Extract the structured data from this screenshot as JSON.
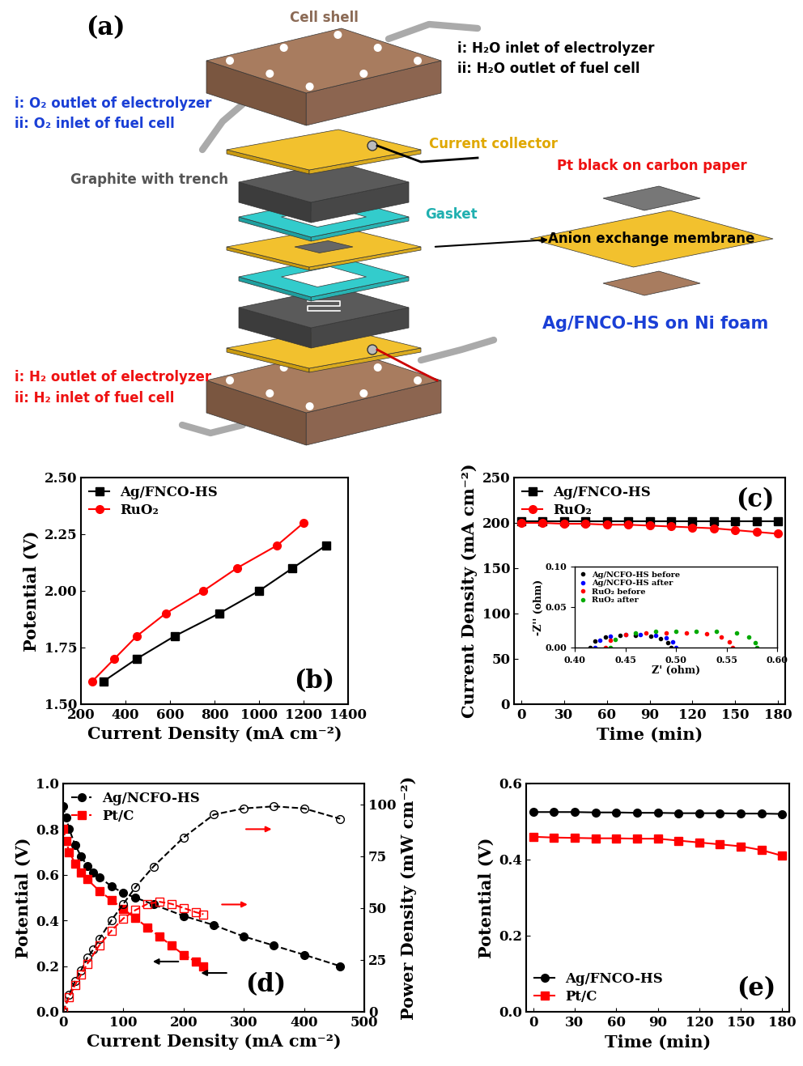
{
  "diagram": {
    "panel_label": "(a)",
    "labels": {
      "cell_shell": "Cell shell",
      "water_port": [
        "i: H₂O inlet of electrolyzer",
        "ii: H₂O outlet of fuel cell"
      ],
      "oxygen_port": [
        "i: O₂ outlet of electrolyzer",
        "ii: O₂ inlet of fuel cell"
      ],
      "current_collector": "Current collector",
      "graphite": "Graphite with trench",
      "gasket": "Gasket",
      "cathode": "Pt black on carbon paper",
      "membrane": "Anion exchange membrane",
      "anode": "Ag/FNCO-HS on Ni foam",
      "hydrogen_port": [
        "i: H₂ outlet of electrolyzer",
        "ii: H₂ inlet of fuel cell"
      ]
    }
  },
  "chart_data": [
    {
      "type": "line",
      "title": "(b)",
      "x_label": "Current Density (mA cm⁻²)",
      "y_label": "Potential (V)",
      "xlim": [
        200,
        1400
      ],
      "xticks": [
        200,
        400,
        600,
        800,
        1000,
        1200,
        1400
      ],
      "ylim": [
        1.5,
        2.5
      ],
      "yticks": [
        {
          "value": 1.5,
          "label": "1.50"
        },
        {
          "value": 1.75,
          "label": "1.75"
        },
        {
          "value": 2.0,
          "label": "2.00"
        },
        {
          "value": 2.25,
          "label": "2.25"
        },
        {
          "value": 2.5,
          "label": "2.50"
        }
      ],
      "legend": "upper left",
      "series": [
        {
          "name": "Ag/FNCO-HS",
          "color": "#000000",
          "marker": "square",
          "line_style": "solid",
          "x": [
            300,
            450,
            620,
            820,
            1000,
            1150,
            1300
          ],
          "values": [
            1.6,
            1.7,
            1.8,
            1.9,
            2.0,
            2.1,
            2.2
          ]
        },
        {
          "name": "RuO₂",
          "color": "#ff0000",
          "marker": "circle",
          "line_style": "solid",
          "x": [
            250,
            350,
            450,
            580,
            750,
            900,
            1080,
            1200
          ],
          "values": [
            1.6,
            1.7,
            1.8,
            1.9,
            2.0,
            2.1,
            2.2,
            2.3
          ]
        }
      ]
    },
    {
      "type": "line",
      "title": "(c)",
      "x_label": "Time (min)",
      "y_label": "Current Density (mA cm⁻²)",
      "xlim": [
        -5,
        185
      ],
      "xticks": [
        0,
        30,
        60,
        90,
        120,
        150,
        180
      ],
      "ylim": [
        0,
        250
      ],
      "yticks": [
        0,
        50,
        100,
        150,
        200,
        250
      ],
      "legend": "upper left",
      "x": [
        0,
        15,
        30,
        45,
        60,
        75,
        90,
        105,
        120,
        135,
        150,
        165,
        180
      ],
      "series": [
        {
          "name": "Ag/FNCO-HS",
          "color": "#000000",
          "marker": "square",
          "line_style": "solid",
          "values": [
            202,
            202,
            202,
            202,
            202,
            202,
            202,
            202,
            202,
            202,
            202,
            202,
            202
          ]
        },
        {
          "name": "RuO₂",
          "color": "#ff0000",
          "marker": "circle",
          "line_style": "solid",
          "values": [
            200,
            200,
            199,
            199,
            198,
            198,
            197,
            196,
            195,
            194,
            192,
            190,
            188
          ]
        }
      ]
    },
    {
      "type": "scatter",
      "x_label": "Z' (ohm)",
      "y_label": "-Z'' (ohm)",
      "xlim": [
        0.4,
        0.6
      ],
      "xticks": [
        {
          "value": 0.4,
          "label": "0.40"
        },
        {
          "value": 0.45,
          "label": "0.45"
        },
        {
          "value": 0.5,
          "label": "0.50"
        },
        {
          "value": 0.55,
          "label": "0.55"
        },
        {
          "value": 0.6,
          "label": "0.60"
        }
      ],
      "ylim": [
        0,
        0.1
      ],
      "yticks": [
        {
          "value": 0,
          "label": "0.00"
        },
        {
          "value": 0.05,
          "label": "0.05"
        },
        {
          "value": 0.1,
          "label": "0.10"
        }
      ],
      "legend": "upper left",
      "series": [
        {
          "name": "Ag/NCFO-HS before",
          "color": "#000000",
          "marker": "circle",
          "x": [
            0.415,
            0.42,
            0.43,
            0.445,
            0.46,
            0.475,
            0.485,
            0.492,
            0.495
          ],
          "values": [
            0,
            0.008,
            0.013,
            0.015,
            0.015,
            0.014,
            0.011,
            0.006,
            0
          ]
        },
        {
          "name": "Ag/NCFO-HS after",
          "color": "#0000ff",
          "marker": "circle",
          "x": [
            0.42,
            0.425,
            0.435,
            0.45,
            0.465,
            0.48,
            0.49,
            0.497,
            0.5
          ],
          "values": [
            0,
            0.009,
            0.014,
            0.016,
            0.016,
            0.015,
            0.012,
            0.007,
            0
          ]
        },
        {
          "name": "RuO₂ before",
          "color": "#ff0000",
          "marker": "circle",
          "x": [
            0.43,
            0.435,
            0.45,
            0.47,
            0.49,
            0.51,
            0.53,
            0.545,
            0.553,
            0.556
          ],
          "values": [
            0,
            0.009,
            0.016,
            0.018,
            0.018,
            0.018,
            0.017,
            0.013,
            0.007,
            0
          ]
        },
        {
          "name": "RuO₂ after",
          "color": "#00aa00",
          "marker": "circle",
          "x": [
            0.435,
            0.44,
            0.46,
            0.48,
            0.5,
            0.52,
            0.54,
            0.56,
            0.572,
            0.578,
            0.58
          ],
          "values": [
            0,
            0.01,
            0.018,
            0.02,
            0.02,
            0.02,
            0.02,
            0.018,
            0.013,
            0.006,
            0
          ]
        }
      ]
    },
    {
      "type": "line",
      "title": "(d)",
      "x_label": "Current Density (mA cm⁻²)",
      "y_label": "Potential (V)",
      "y2_label": "Power Density (mW cm⁻²)",
      "xlim": [
        0,
        500
      ],
      "xticks": [
        0,
        100,
        200,
        300,
        400,
        500
      ],
      "ylim": [
        0,
        1.0
      ],
      "yticks": [
        0.0,
        0.2,
        0.4,
        0.6,
        0.8,
        1.0
      ],
      "y2lim": [
        0,
        110
      ],
      "y2ticks": [
        0,
        25,
        50,
        75,
        100
      ],
      "legend": "upper left",
      "series": [
        {
          "name": "Ag/NCFO-HS",
          "color": "#000000",
          "marker": "circle",
          "line_style": "dashed",
          "x": [
            0,
            5,
            10,
            20,
            30,
            40,
            50,
            60,
            80,
            100,
            120,
            150,
            200,
            250,
            300,
            350,
            400,
            460
          ],
          "values": [
            0.9,
            0.85,
            0.8,
            0.73,
            0.68,
            0.64,
            0.61,
            0.59,
            0.55,
            0.52,
            0.5,
            0.47,
            0.42,
            0.38,
            0.33,
            0.29,
            0.25,
            0.2
          ]
        },
        {
          "name": "Pt/C",
          "color": "#ff0000",
          "marker": "square",
          "line_style": "dashed",
          "x": [
            0,
            5,
            10,
            20,
            30,
            40,
            60,
            80,
            100,
            120,
            140,
            160,
            180,
            200,
            220,
            233
          ],
          "values": [
            0.8,
            0.75,
            0.7,
            0.65,
            0.61,
            0.58,
            0.53,
            0.49,
            0.45,
            0.41,
            0.37,
            0.33,
            0.29,
            0.25,
            0.22,
            0.2
          ]
        },
        {
          "color": "#000000",
          "marker": "open circle",
          "line_style": "dashed",
          "axis": "y2",
          "x": [
            0,
            10,
            20,
            30,
            40,
            50,
            60,
            80,
            100,
            120,
            150,
            200,
            250,
            300,
            350,
            400,
            460
          ],
          "values": [
            0,
            8,
            15,
            20,
            26,
            30,
            35,
            44,
            52,
            60,
            70,
            84,
            95,
            98,
            99,
            98,
            93
          ]
        },
        {
          "color": "#ff0000",
          "marker": "open square",
          "line_style": "dashed",
          "axis": "y2",
          "x": [
            0,
            10,
            20,
            30,
            40,
            60,
            80,
            100,
            120,
            140,
            160,
            180,
            200,
            220,
            233
          ],
          "values": [
            0,
            7,
            13,
            18,
            23,
            32,
            39,
            45,
            49,
            52,
            53,
            52,
            50,
            48,
            47
          ]
        }
      ]
    },
    {
      "type": "line",
      "title": "(e)",
      "x_label": "Time (min)",
      "y_label": "Potential (V)",
      "xlim": [
        -5,
        185
      ],
      "xticks": [
        0,
        30,
        60,
        90,
        120,
        150,
        180
      ],
      "ylim": [
        0,
        0.6
      ],
      "yticks": [
        0.0,
        0.2,
        0.4,
        0.6
      ],
      "legend": "lower left",
      "x": [
        0,
        15,
        30,
        45,
        60,
        75,
        90,
        105,
        120,
        135,
        150,
        165,
        180
      ],
      "series": [
        {
          "name": "Ag/FNCO-HS",
          "color": "#000000",
          "marker": "circle",
          "line_style": "solid",
          "values": [
            0.525,
            0.525,
            0.525,
            0.524,
            0.524,
            0.523,
            0.523,
            0.522,
            0.522,
            0.522,
            0.521,
            0.521,
            0.52
          ]
        },
        {
          "name": "Pt/C",
          "color": "#ff0000",
          "marker": "square",
          "line_style": "solid",
          "values": [
            0.46,
            0.458,
            0.457,
            0.456,
            0.456,
            0.455,
            0.455,
            0.45,
            0.445,
            0.44,
            0.435,
            0.425,
            0.41
          ]
        }
      ]
    }
  ]
}
